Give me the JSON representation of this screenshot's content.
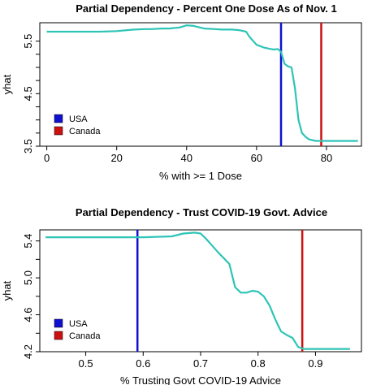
{
  "chart_data": [
    {
      "type": "line",
      "title": "Partial Dependency - Percent One Dose As of Nov. 1",
      "xlabel": "% with >= 1 Dose",
      "ylabel": "yhat",
      "xlim": [
        -2,
        90
      ],
      "ylim": [
        3.5,
        5.85
      ],
      "xticks": [
        0,
        20,
        40,
        60,
        80
      ],
      "yticks": [
        3.5,
        4.5,
        5.5
      ],
      "yticks_minor": [
        3.5,
        3.75,
        4.0,
        4.25,
        4.5,
        4.75,
        5.0,
        5.25,
        5.5
      ],
      "grid": false,
      "legend_position": "bottom-left",
      "line_color": "#2ec4b6",
      "series": [
        {
          "x": [
            0,
            5,
            10,
            15,
            20,
            23,
            25,
            28,
            30,
            33,
            35,
            38,
            40,
            42,
            45,
            48,
            50,
            53,
            55,
            57,
            58,
            60,
            62,
            64,
            65,
            66,
            67,
            68,
            69,
            70,
            71,
            72,
            73,
            74,
            75,
            77,
            80,
            85,
            89
          ],
          "y": [
            5.68,
            5.68,
            5.68,
            5.68,
            5.69,
            5.71,
            5.72,
            5.73,
            5.73,
            5.74,
            5.74,
            5.76,
            5.8,
            5.79,
            5.74,
            5.73,
            5.72,
            5.72,
            5.71,
            5.68,
            5.58,
            5.43,
            5.38,
            5.35,
            5.34,
            5.35,
            5.3,
            5.07,
            5.02,
            5.0,
            4.6,
            4.0,
            3.75,
            3.68,
            3.63,
            3.6,
            3.6,
            3.6,
            3.6
          ]
        }
      ],
      "vlines": [
        {
          "label": "USA",
          "x": 67,
          "color": "#1010d0"
        },
        {
          "label": "Canada",
          "x": 78.5,
          "color": "#cc1111"
        }
      ]
    },
    {
      "type": "line",
      "title": "Partial Dependency - Trust COVID-19 Govt. Advice",
      "xlabel": "% Trusting Govt COVID-19 Advice",
      "ylabel": "yhat",
      "xlim": [
        0.42,
        0.98
      ],
      "ylim": [
        4.2,
        5.52
      ],
      "xticks": [
        0.5,
        0.6,
        0.7,
        0.8,
        0.9
      ],
      "yticks": [
        4.2,
        4.6,
        5.0,
        5.4
      ],
      "yticks_minor": [
        4.2,
        4.4,
        4.6,
        4.8,
        5.0,
        5.2,
        5.4
      ],
      "grid": false,
      "legend_position": "bottom-left",
      "line_color": "#2ec4b6",
      "series": [
        {
          "x": [
            0.43,
            0.5,
            0.6,
            0.65,
            0.67,
            0.69,
            0.7,
            0.71,
            0.72,
            0.73,
            0.75,
            0.76,
            0.77,
            0.78,
            0.79,
            0.8,
            0.81,
            0.82,
            0.83,
            0.84,
            0.85,
            0.86,
            0.87,
            0.88,
            0.9,
            0.96
          ],
          "y": [
            5.44,
            5.44,
            5.44,
            5.45,
            5.48,
            5.49,
            5.48,
            5.42,
            5.35,
            5.28,
            5.15,
            4.9,
            4.84,
            4.84,
            4.86,
            4.85,
            4.8,
            4.7,
            4.55,
            4.42,
            4.38,
            4.35,
            4.25,
            4.23,
            4.23,
            4.23
          ]
        }
      ],
      "vlines": [
        {
          "label": "USA",
          "x": 0.59,
          "color": "#1010d0"
        },
        {
          "label": "Canada",
          "x": 0.877,
          "color": "#cc1111"
        }
      ]
    }
  ]
}
